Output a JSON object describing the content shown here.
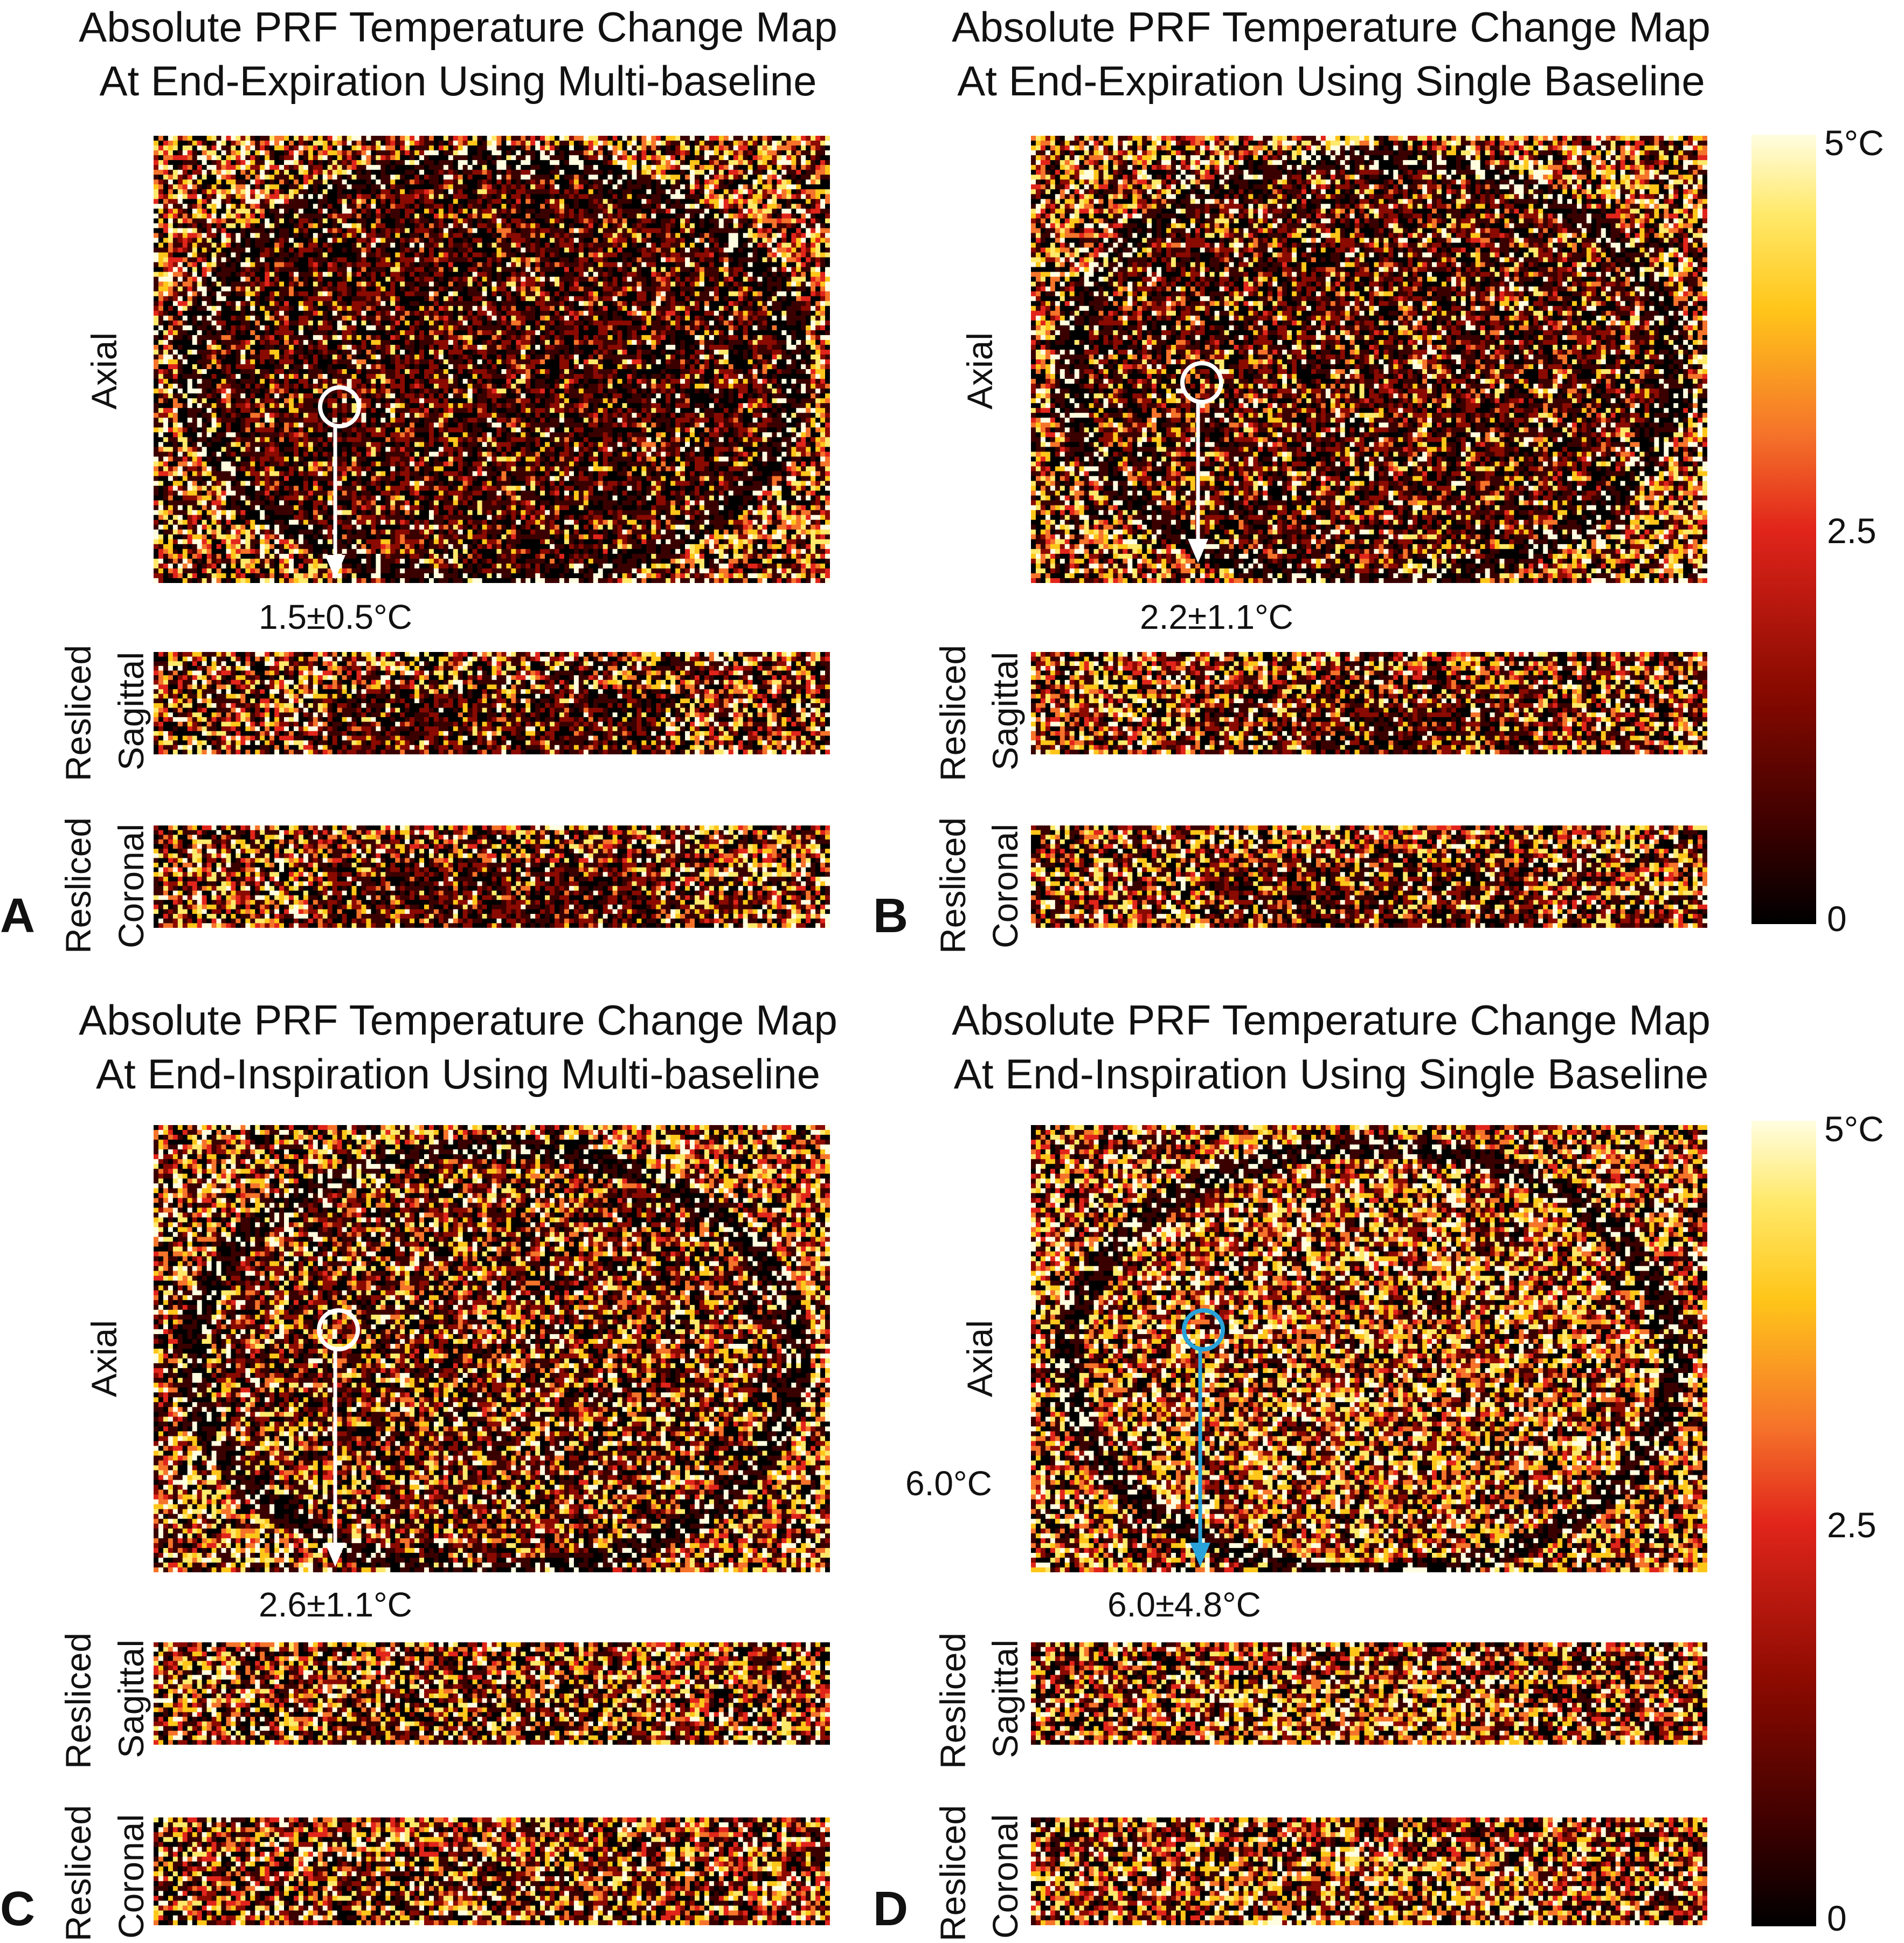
{
  "panels": [
    {
      "letter": "A",
      "title_line1": "Absolute PRF Temperature Change Map",
      "title_line2": "At End-Expiration Using Multi-baseline",
      "axial_label": "Axial",
      "sagittal_label_1": "Resliced",
      "sagittal_label_2": "Sagittal",
      "coronal_label_1": "Resliced",
      "coronal_label_2": "Coronal",
      "roi_value": "1.5±0.5°C",
      "roi_color": "#ffffff"
    },
    {
      "letter": "B",
      "title_line1": "Absolute PRF Temperature Change Map",
      "title_line2": "At End-Expiration Using Single Baseline",
      "axial_label": "Axial",
      "sagittal_label_1": "Resliced",
      "sagittal_label_2": "Sagittal",
      "coronal_label_1": "Resliced",
      "coronal_label_2": "Coronal",
      "roi_value": "2.2±1.1°C",
      "roi_color": "#ffffff"
    },
    {
      "letter": "C",
      "title_line1": "Absolute PRF Temperature Change Map",
      "title_line2": "At End-Inspiration Using Multi-baseline",
      "axial_label": "Axial",
      "sagittal_label_1": "Resliced",
      "sagittal_label_2": "Sagittal",
      "coronal_label_1": "Resliced",
      "coronal_label_2": "Coronal",
      "roi_value": "2.6±1.1°C",
      "roi_color": "#ffffff"
    },
    {
      "letter": "D",
      "title_line1": "Absolute PRF Temperature Change Map",
      "title_line2": "At End-Inspiration Using Single Baseline",
      "axial_label": "Axial",
      "sagittal_label_1": "Resliced",
      "sagittal_label_2": "Sagittal",
      "coronal_label_1": "Resliced",
      "coronal_label_2": "Coronal",
      "roi_value": "6.0±4.8°C",
      "side_value": "6.0°C",
      "roi_color": "#29a3d9"
    }
  ],
  "colorbars": [
    {
      "max": "5°C",
      "mid": "2.5",
      "min": "0"
    },
    {
      "max": "5°C",
      "mid": "2.5",
      "min": "0"
    }
  ],
  "colormap": [
    "#000000",
    "#3a0000",
    "#8a0a00",
    "#e1251b",
    "#f5732a",
    "#ffc61a",
    "#ffe96a",
    "#fffde0"
  ]
}
